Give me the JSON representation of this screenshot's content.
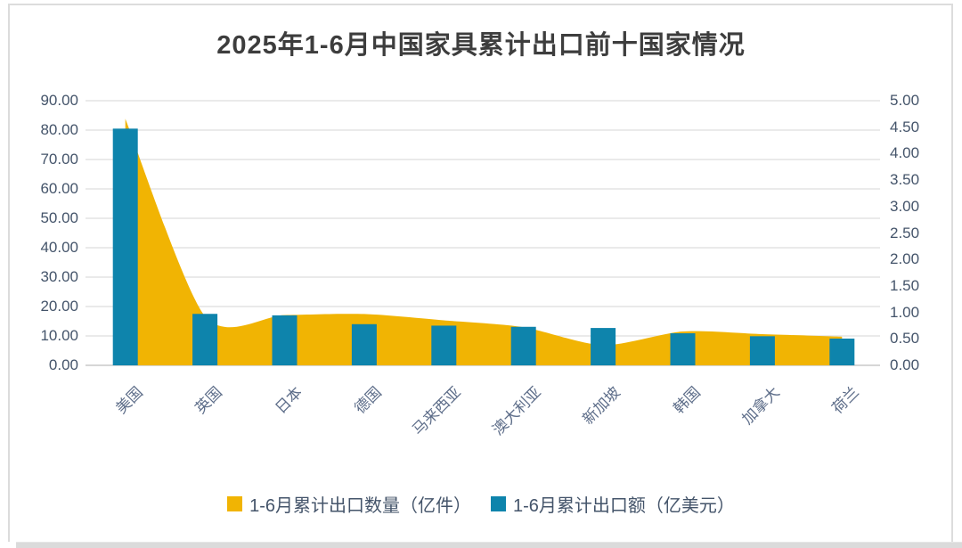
{
  "title": "2025年1-6月中国家具累计出口前十国家情况",
  "chart_data": {
    "type": "combo",
    "categories": [
      "美国",
      "英国",
      "日本",
      "德国",
      "马来西亚",
      "澳大利亚",
      "新加坡",
      "韩国",
      "加拿大",
      "荷兰"
    ],
    "series": [
      {
        "name": "1-6月累计出口数量（亿件）",
        "type": "area",
        "axis": "right",
        "color": "#F1B403",
        "values": [
          4.66,
          0.93,
          0.95,
          0.97,
          0.85,
          0.72,
          0.38,
          0.64,
          0.59,
          0.54
        ]
      },
      {
        "name": "1-6月累计出口额（亿美元）",
        "type": "bar",
        "axis": "left",
        "color": "#0E84AC",
        "values": [
          80.5,
          17.5,
          17.0,
          14.0,
          13.5,
          13.1,
          12.7,
          10.9,
          9.9,
          9.1
        ]
      }
    ],
    "left_axis": {
      "min": 0,
      "max": 90,
      "step": 10,
      "labels": [
        "0.00",
        "10.00",
        "20.00",
        "30.00",
        "40.00",
        "50.00",
        "60.00",
        "70.00",
        "80.00",
        "90.00"
      ]
    },
    "right_axis": {
      "min": 0,
      "max": 5,
      "step": 0.5,
      "labels": [
        "0.00",
        "0.50",
        "1.00",
        "1.50",
        "2.00",
        "2.50",
        "3.00",
        "3.50",
        "4.00",
        "4.50",
        "5.00"
      ]
    },
    "grid": true,
    "legend_position": "bottom",
    "colors": {
      "gridline": "#e3e3e3",
      "baseline": "#c9c9c9",
      "axis_text": "#44546a",
      "category_text": "#5d6d89",
      "title_text": "#3d3d3d"
    }
  }
}
